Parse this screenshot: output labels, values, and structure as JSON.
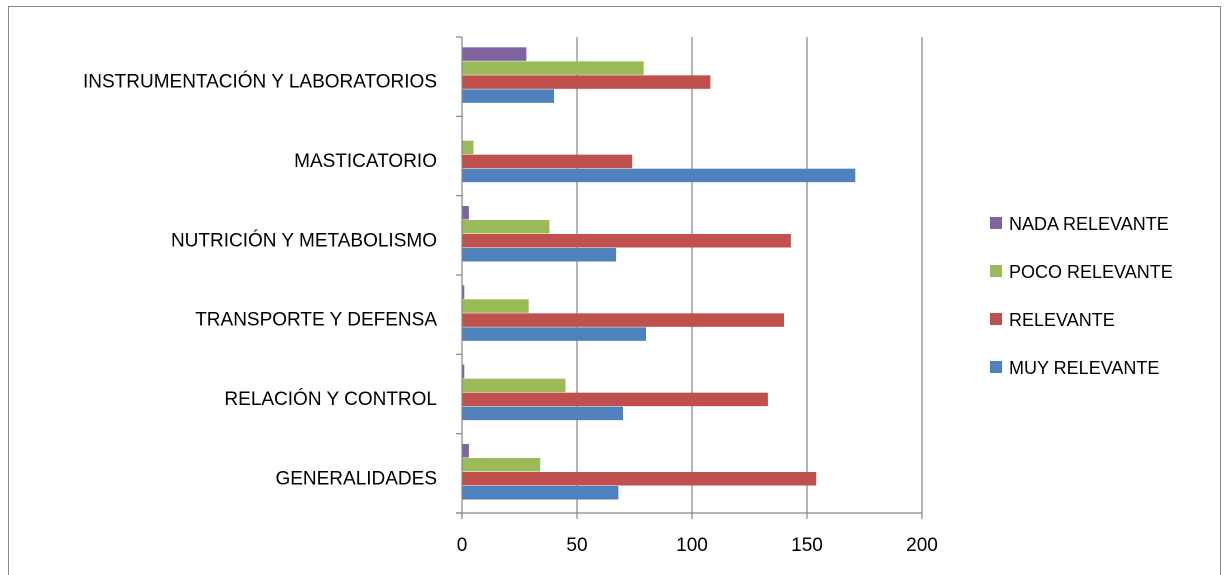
{
  "chart_data": {
    "type": "bar",
    "orientation": "horizontal",
    "categories": [
      "GENERALIDADES",
      "RELACIÓN Y CONTROL",
      "TRANSPORTE Y DEFENSA",
      "NUTRICIÓN Y METABOLISMO",
      "MASTICATORIO",
      "INSTRUMENTACIÓN Y LABORATORIOS"
    ],
    "series": [
      {
        "name": "MUY RELEVANTE",
        "color": "#4F81BD",
        "values": [
          68,
          70,
          80,
          67,
          171,
          40
        ]
      },
      {
        "name": "RELEVANTE",
        "color": "#C0504D",
        "values": [
          154,
          133,
          140,
          143,
          74,
          108
        ]
      },
      {
        "name": "POCO RELEVANTE",
        "color": "#9BBB59",
        "values": [
          34,
          45,
          29,
          38,
          5,
          79
        ]
      },
      {
        "name": "NADA RELEVANTE",
        "color": "#8064A2",
        "values": [
          3,
          1,
          1,
          3,
          0,
          28
        ]
      }
    ],
    "xlim": [
      0,
      200
    ],
    "xticks": [
      0,
      50,
      100,
      150,
      200
    ],
    "grid": "vertical",
    "legend_position": "right"
  }
}
